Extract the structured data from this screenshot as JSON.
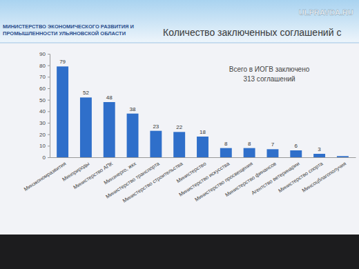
{
  "chart_data": {
    "type": "bar",
    "title": "Количество заключенных соглашений с",
    "subtitle": "МИНИСТЕРСТВО ЭКОНОМИЧЕСКОГО РАЗВИТИЯ И ПРОМЫШЛЕННОСТИ УЛЬЯНОВСКОЙ ОБЛАСТИ",
    "annotations": [
      "Всего в ИОГВ заключено",
      "313 соглашений",
      "ULPRAVDA.RU"
    ],
    "categories": [
      "Минэкономразвития",
      "Минприроды",
      "Министерство АПК",
      "Минэнерго, жкх",
      "Министерство транспорта",
      "Министерство строительства",
      "Министерство",
      "Министерство искусства",
      "Министерство просвещения",
      "Министерство финансов",
      "Агентство ветеринарии",
      "Министерство спорта",
      "Минсоцблагополучия"
    ],
    "values": [
      79,
      52,
      48,
      38,
      23,
      22,
      18,
      8,
      8,
      7,
      6,
      3,
      1
    ],
    "value_labels": [
      "79",
      "52",
      "48",
      "38",
      "23",
      "22",
      "18",
      "8",
      "8",
      "7",
      "6",
      "3",
      null
    ],
    "color": "#2f6fca",
    "ylim": [
      0,
      90
    ],
    "yticks": [
      0,
      10,
      20,
      30,
      40,
      50,
      60,
      70,
      80,
      90
    ],
    "grid": false,
    "data_labels": true
  }
}
